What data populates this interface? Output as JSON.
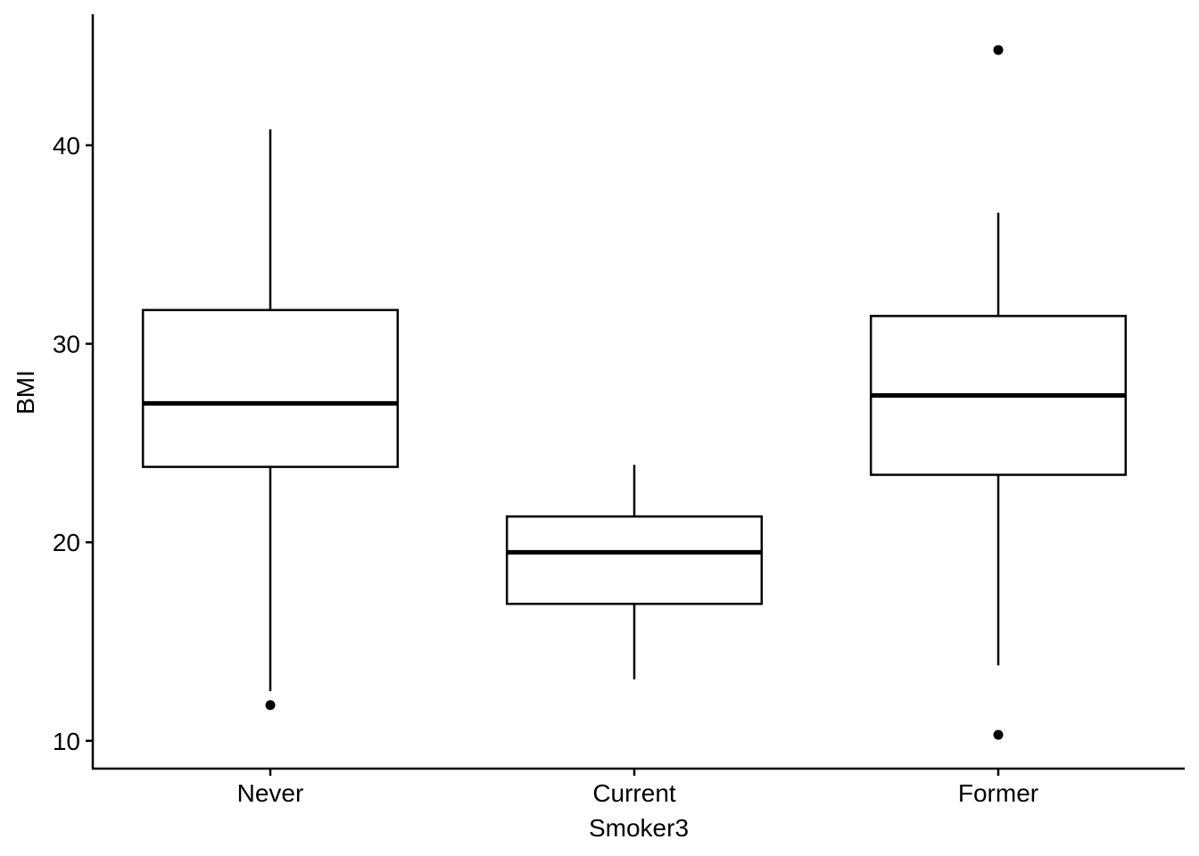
{
  "chart_data": {
    "type": "boxplot",
    "title": "",
    "xlabel": "Smoker3",
    "ylabel": "BMI",
    "categories": [
      "Never",
      "Current",
      "Former"
    ],
    "ylim": [
      8.6,
      46.6
    ],
    "y_ticks": [
      10,
      20,
      30,
      40
    ],
    "grid": false,
    "legend": "none",
    "boxes": [
      {
        "category": "Never",
        "whisker_low": 12.5,
        "q1": 23.8,
        "median": 27.0,
        "q3": 31.7,
        "whisker_high": 40.8,
        "outliers": [
          11.8
        ]
      },
      {
        "category": "Current",
        "whisker_low": 13.1,
        "q1": 16.9,
        "median": 19.5,
        "q3": 21.3,
        "whisker_high": 23.9,
        "outliers": []
      },
      {
        "category": "Former",
        "whisker_low": 13.8,
        "q1": 23.4,
        "median": 27.4,
        "q3": 31.4,
        "whisker_high": 36.6,
        "outliers": [
          44.8,
          10.3
        ]
      }
    ]
  }
}
